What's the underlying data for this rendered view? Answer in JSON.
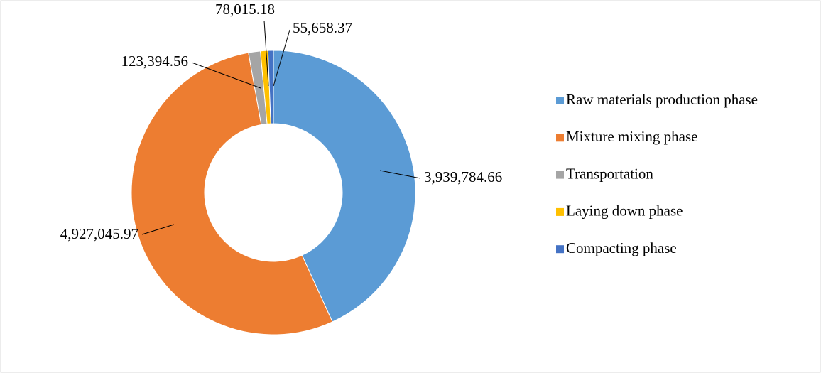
{
  "chart_data": {
    "type": "donut",
    "categories": [
      "Raw materials production phase",
      "Mixture mixing phase",
      "Transportation",
      "Laying down phase",
      "Compacting phase"
    ],
    "values": [
      3939784.66,
      4927045.97,
      123394.56,
      78015.18,
      55658.37
    ],
    "value_labels": [
      "3,939,784.66",
      "4,927,045.97",
      "123,394.56",
      "78,015.18",
      "55,658.37"
    ],
    "colors": [
      "#5b9bd5",
      "#ed7d31",
      "#a5a5a5",
      "#ffc000",
      "#4472c4"
    ],
    "legend": "right"
  }
}
